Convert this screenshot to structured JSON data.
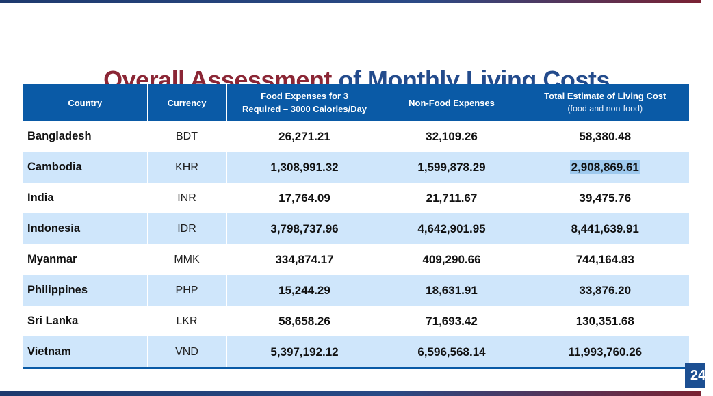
{
  "title": {
    "part1": "Overall Assessment",
    "part2": "of Monthly Living Costs"
  },
  "table": {
    "headers": {
      "country": "Country",
      "currency": "Currency",
      "food_line1": "Food Expenses for 3",
      "food_line2": "Required – 3000 Calories/Day",
      "nonfood": "Non-Food Expenses",
      "total_line1": "Total Estimate of Living Cost",
      "total_line2": "(food and non-food)"
    },
    "rows": [
      {
        "country": "Bangladesh",
        "currency": "BDT",
        "food": "26,271.21",
        "nonfood": "32,109.26",
        "total": "58,380.48"
      },
      {
        "country": "Cambodia",
        "currency": "KHR",
        "food": "1,308,991.32",
        "nonfood": "1,599,878.29",
        "total": "2,908,869.61"
      },
      {
        "country": "India",
        "currency": "INR",
        "food": "17,764.09",
        "nonfood": "21,711.67",
        "total": "39,475.76"
      },
      {
        "country": "Indonesia",
        "currency": "IDR",
        "food": "3,798,737.96",
        "nonfood": "4,642,901.95",
        "total": "8,441,639.91"
      },
      {
        "country": "Myanmar",
        "currency": "MMK",
        "food": "334,874.17",
        "nonfood": "409,290.66",
        "total": "744,164.83"
      },
      {
        "country": "Philippines",
        "currency": "PHP",
        "food": "15,244.29",
        "nonfood": "18,631.91",
        "total": "33,876.20"
      },
      {
        "country": "Sri Lanka",
        "currency": "LKR",
        "food": "58,658.26",
        "nonfood": "71,693.42",
        "total": "130,351.68"
      },
      {
        "country": "Vietnam",
        "currency": "VND",
        "food": "5,397,192.12",
        "nonfood": "6,596,568.14",
        "total": "11,993,760.26"
      }
    ]
  },
  "page_number": "24",
  "colors": {
    "title_accent": "#8b2635",
    "title_primary": "#234b8c",
    "header_bg": "#0a5aa6",
    "row_alt": "#cfe6fb",
    "selection": "#9ec9ee"
  }
}
